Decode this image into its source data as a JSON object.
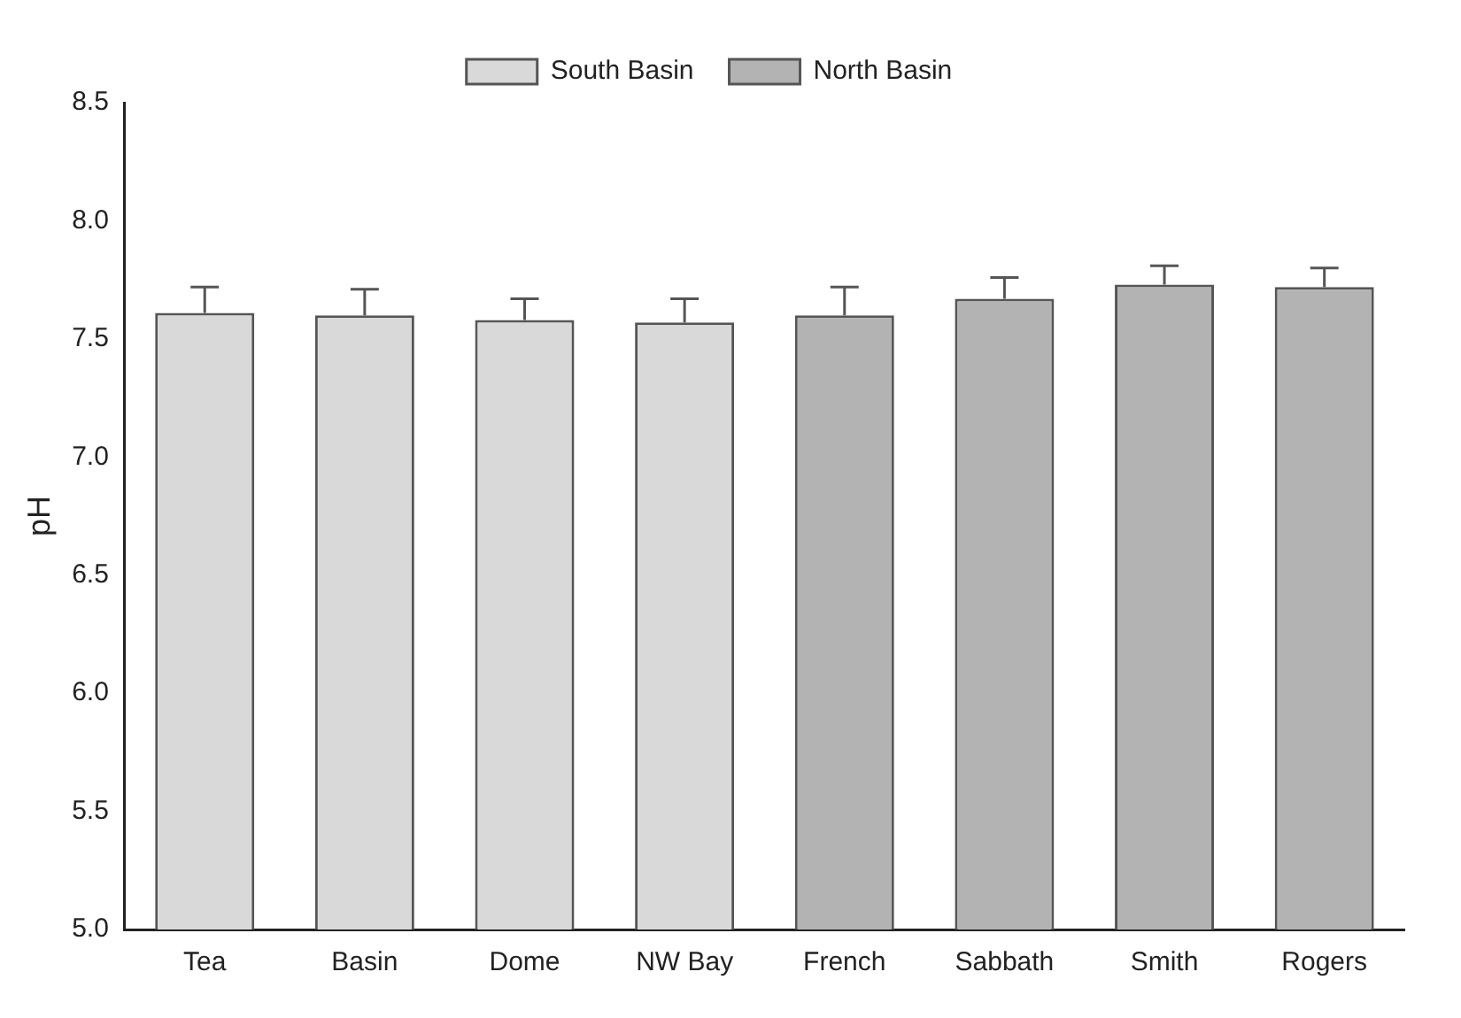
{
  "chart_data": {
    "type": "bar",
    "ylabel": "pH",
    "categories": [
      "Tea",
      "Basin",
      "Dome",
      "NW Bay",
      "French",
      "Sabbath",
      "Smith",
      "Rogers"
    ],
    "series": [
      {
        "name": "South Basin",
        "color": "#d9d9d9",
        "values": [
          7.61,
          7.6,
          7.58,
          7.57,
          null,
          null,
          null,
          null
        ],
        "errors": [
          [
            7.61,
            7.72
          ],
          [
            7.6,
            7.71
          ],
          [
            7.58,
            7.67
          ],
          [
            7.57,
            7.67
          ],
          null,
          null,
          null,
          null
        ]
      },
      {
        "name": "North Basin",
        "color": "#b3b3b3",
        "values": [
          null,
          null,
          null,
          null,
          7.6,
          7.67,
          7.73,
          7.72
        ],
        "errors": [
          null,
          null,
          null,
          null,
          [
            7.6,
            7.72
          ],
          [
            7.67,
            7.76
          ],
          [
            7.73,
            7.81
          ],
          [
            7.72,
            7.8
          ]
        ]
      }
    ],
    "ylim": [
      5,
      8.5
    ],
    "yticks": [
      {
        "value": 5,
        "label": "5.0"
      },
      {
        "value": 5.5,
        "label": "5.5"
      },
      {
        "value": 6,
        "label": "6.0"
      },
      {
        "value": 6.5,
        "label": "6.5"
      },
      {
        "value": 7,
        "label": "7.0"
      },
      {
        "value": 7.5,
        "label": "7.5"
      },
      {
        "value": 8,
        "label": "8.0"
      },
      {
        "value": 8.5,
        "label": "8.5"
      }
    ],
    "grid": false,
    "legend": "top"
  }
}
